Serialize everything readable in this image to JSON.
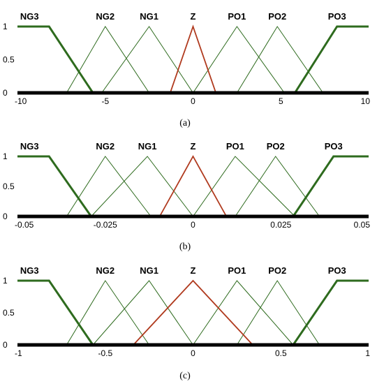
{
  "colors": {
    "green": "#2e6b1e",
    "red": "#b03a1e",
    "axis": "#000000"
  },
  "chart_data": [
    {
      "type": "line",
      "caption": "(a)",
      "xlim": [
        -10,
        10
      ],
      "ylim": [
        0,
        1
      ],
      "x_ticks": [
        {
          "value": -10,
          "label": "-10"
        },
        {
          "value": -5,
          "label": "-5"
        },
        {
          "value": 0,
          "label": "0"
        },
        {
          "value": 5,
          "label": "5"
        },
        {
          "value": 10,
          "label": "10"
        }
      ],
      "y_ticks": [
        {
          "value": 1,
          "label": "1"
        },
        {
          "value": 0.5,
          "label": "0.5"
        },
        {
          "value": 0,
          "label": "0"
        }
      ],
      "series": [
        {
          "name": "NG3",
          "color": "green",
          "emphasis": true,
          "points": [
            [
              -10,
              1
            ],
            [
              -8.2,
              1
            ],
            [
              -5.7,
              0
            ]
          ]
        },
        {
          "name": "NG2",
          "color": "green",
          "emphasis": false,
          "points": [
            [
              -7.2,
              0
            ],
            [
              -5,
              1
            ],
            [
              -2.5,
              0
            ]
          ]
        },
        {
          "name": "NG1",
          "color": "green",
          "emphasis": false,
          "points": [
            [
              -5.2,
              0
            ],
            [
              -2.5,
              1
            ],
            [
              0,
              0
            ]
          ]
        },
        {
          "name": "Z",
          "color": "red",
          "emphasis": false,
          "points": [
            [
              -1.3,
              0
            ],
            [
              0,
              1
            ],
            [
              1.3,
              0
            ]
          ]
        },
        {
          "name": "PO1",
          "color": "green",
          "emphasis": false,
          "points": [
            [
              0,
              0
            ],
            [
              2.5,
              1
            ],
            [
              5.2,
              0
            ]
          ]
        },
        {
          "name": "PO2",
          "color": "green",
          "emphasis": false,
          "points": [
            [
              2.5,
              0
            ],
            [
              4.8,
              1
            ],
            [
              7.4,
              0
            ]
          ]
        },
        {
          "name": "PO3",
          "color": "green",
          "emphasis": true,
          "points": [
            [
              5.8,
              0
            ],
            [
              8.2,
              1
            ],
            [
              10,
              1
            ]
          ]
        }
      ]
    },
    {
      "type": "line",
      "caption": "(b)",
      "xlim": [
        -0.05,
        0.05
      ],
      "ylim": [
        0,
        1
      ],
      "x_ticks": [
        {
          "value": -0.05,
          "label": "-0.05"
        },
        {
          "value": -0.025,
          "label": "-0.025"
        },
        {
          "value": 0,
          "label": "0"
        },
        {
          "value": 0.025,
          "label": "0.025"
        },
        {
          "value": 0.05,
          "label": "0.05"
        }
      ],
      "y_ticks": [
        {
          "value": 1,
          "label": "1"
        },
        {
          "value": 0.5,
          "label": "0.5"
        },
        {
          "value": 0,
          "label": "0"
        }
      ],
      "series": [
        {
          "name": "NG3",
          "color": "green",
          "emphasis": true,
          "points": [
            [
              -0.05,
              1
            ],
            [
              -0.041,
              1
            ],
            [
              -0.029,
              0
            ]
          ]
        },
        {
          "name": "NG2",
          "color": "green",
          "emphasis": false,
          "points": [
            [
              -0.036,
              0
            ],
            [
              -0.025,
              1
            ],
            [
              -0.012,
              0
            ]
          ]
        },
        {
          "name": "NG1",
          "color": "green",
          "emphasis": false,
          "points": [
            [
              -0.029,
              0
            ],
            [
              -0.013,
              1
            ],
            [
              0,
              0
            ]
          ]
        },
        {
          "name": "Z",
          "color": "red",
          "emphasis": false,
          "points": [
            [
              -0.0095,
              0
            ],
            [
              0,
              1
            ],
            [
              0.0095,
              0
            ]
          ]
        },
        {
          "name": "PO1",
          "color": "green",
          "emphasis": false,
          "points": [
            [
              0,
              0
            ],
            [
              0.012,
              1
            ],
            [
              0.029,
              0
            ]
          ]
        },
        {
          "name": "PO2",
          "color": "green",
          "emphasis": false,
          "points": [
            [
              0.012,
              0
            ],
            [
              0.0235,
              1
            ],
            [
              0.036,
              0
            ]
          ]
        },
        {
          "name": "PO3",
          "color": "green",
          "emphasis": true,
          "points": [
            [
              0.0285,
              0
            ],
            [
              0.04,
              1
            ],
            [
              0.05,
              1
            ]
          ]
        }
      ]
    },
    {
      "type": "line",
      "caption": "(c)",
      "xlim": [
        -1,
        1
      ],
      "ylim": [
        0,
        1
      ],
      "x_ticks": [
        {
          "value": -1,
          "label": "-1"
        },
        {
          "value": -0.5,
          "label": "-0.5"
        },
        {
          "value": 0,
          "label": "0"
        },
        {
          "value": 0.5,
          "label": "0.5"
        },
        {
          "value": 1,
          "label": "1"
        }
      ],
      "y_ticks": [
        {
          "value": 1,
          "label": "1"
        },
        {
          "value": 0.5,
          "label": "0.5"
        },
        {
          "value": 0,
          "label": "0"
        }
      ],
      "series": [
        {
          "name": "NG3",
          "color": "green",
          "emphasis": true,
          "points": [
            [
              -1,
              1
            ],
            [
              -0.82,
              1
            ],
            [
              -0.57,
              0
            ]
          ]
        },
        {
          "name": "NG2",
          "color": "green",
          "emphasis": false,
          "points": [
            [
              -0.72,
              0
            ],
            [
              -0.5,
              1
            ],
            [
              -0.25,
              0
            ]
          ]
        },
        {
          "name": "NG1",
          "color": "green",
          "emphasis": false,
          "points": [
            [
              -0.57,
              0
            ],
            [
              -0.25,
              1
            ],
            [
              0,
              0
            ]
          ]
        },
        {
          "name": "Z",
          "color": "red",
          "emphasis": false,
          "points": [
            [
              -0.34,
              0
            ],
            [
              0,
              1
            ],
            [
              0.34,
              0
            ]
          ]
        },
        {
          "name": "PO1",
          "color": "green",
          "emphasis": false,
          "points": [
            [
              0,
              0
            ],
            [
              0.25,
              1
            ],
            [
              0.57,
              0
            ]
          ]
        },
        {
          "name": "PO2",
          "color": "green",
          "emphasis": false,
          "points": [
            [
              0.25,
              0
            ],
            [
              0.48,
              1
            ],
            [
              0.72,
              0
            ]
          ]
        },
        {
          "name": "PO3",
          "color": "green",
          "emphasis": true,
          "points": [
            [
              0.57,
              0
            ],
            [
              0.82,
              1
            ],
            [
              1,
              1
            ]
          ]
        }
      ]
    }
  ]
}
